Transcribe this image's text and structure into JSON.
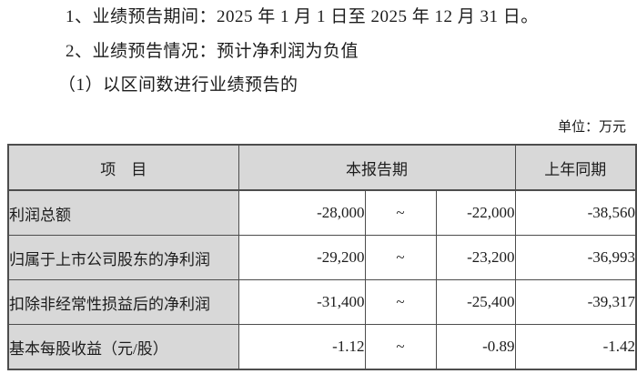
{
  "page": {
    "line1": "1、业绩预告期间：2025 年 1 月 1 日至 2025 年 12 月 31 日。",
    "line2": "2、业绩预告情况：预计净利润为负值",
    "line3": "（1）以区间数进行业绩预告的",
    "unit_label": "单位：万元"
  },
  "colors": {
    "header_bg": "#d8d8d8",
    "border": "#4d4d4d",
    "text": "#1c1c1c"
  },
  "table": {
    "headers": {
      "item": "项　目",
      "current_period": "本报告期",
      "prior_period": "上年同期"
    },
    "rows": [
      {
        "label": "利润总额",
        "low": "-28,000",
        "tilde": "~",
        "high": "-22,000",
        "prior": "-38,560"
      },
      {
        "label": "归属于上市公司股东的净利润",
        "low": "-29,200",
        "tilde": "~",
        "high": "-23,200",
        "prior": "-36,993"
      },
      {
        "label": "扣除非经常性损益后的净利润",
        "low": "-31,400",
        "tilde": "~",
        "high": "-25,400",
        "prior": "-39,317"
      },
      {
        "label": "基本每股收益（元/股）",
        "low": "-1.12",
        "tilde": "~",
        "high": "-0.89",
        "prior": "-1.42"
      }
    ]
  }
}
